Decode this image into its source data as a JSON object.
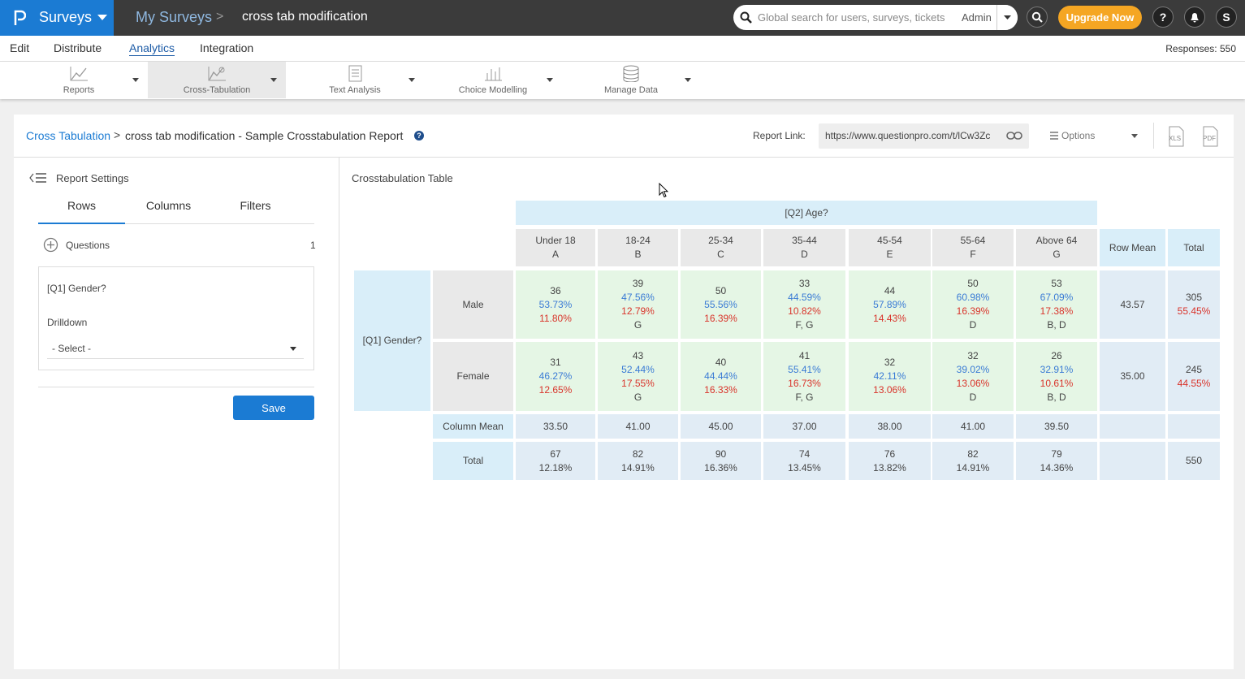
{
  "top_bar": {
    "app": "Surveys",
    "breadcrumb": "My Surveys",
    "survey": "cross tab modification",
    "search_placeholder": "Global search for users, surveys, tickets",
    "account": "Admin",
    "upgrade": "Upgrade Now",
    "help": "?",
    "user_initial": "S"
  },
  "nav": {
    "items": [
      "Edit",
      "Distribute",
      "Analytics",
      "Integration"
    ],
    "active": 2,
    "responses": "Responses: 550"
  },
  "toolbar": {
    "items": [
      "Reports",
      "Cross-Tabulation",
      "Text Analysis",
      "Choice Modelling",
      "Manage Data"
    ],
    "active": 1
  },
  "report": {
    "breadcrumb_root": "Cross Tabulation",
    "title": "cross tab modification - Sample Crosstabulation Report",
    "link_label": "Report Link:",
    "link": "https://www.questionpro.com/t/lCw3Zc",
    "options": "Options",
    "export": [
      "XLS",
      "PDF"
    ]
  },
  "settings": {
    "title": "Report Settings",
    "tabs": [
      "Rows",
      "Columns",
      "Filters"
    ],
    "active_tab": 0,
    "questions_label": "Questions",
    "questions_count": "1",
    "question": "[Q1] Gender?",
    "drilldown_label": "Drilldown",
    "drilldown_value": "- Select -",
    "save": "Save"
  },
  "table": {
    "title": "Crosstabulation Table",
    "column_question": "[Q2] Age?",
    "row_question": "[Q1] Gender?",
    "columns": [
      {
        "label": "Under 18",
        "letter": "A"
      },
      {
        "label": "18-24",
        "letter": "B"
      },
      {
        "label": "25-34",
        "letter": "C"
      },
      {
        "label": "35-44",
        "letter": "D"
      },
      {
        "label": "45-54",
        "letter": "E"
      },
      {
        "label": "55-64",
        "letter": "F"
      },
      {
        "label": "Above 64",
        "letter": "G"
      }
    ],
    "row_mean_header": "Row Mean",
    "total_header": "Total",
    "rows": [
      {
        "label": "Male",
        "cells": [
          {
            "count": "36",
            "col_pct": "53.73%",
            "row_pct": "11.80%"
          },
          {
            "count": "39",
            "col_pct": "47.56%",
            "row_pct": "12.79%",
            "sig": "G"
          },
          {
            "count": "50",
            "col_pct": "55.56%",
            "row_pct": "16.39%"
          },
          {
            "count": "33",
            "col_pct": "44.59%",
            "row_pct": "10.82%",
            "sig": "F, G"
          },
          {
            "count": "44",
            "col_pct": "57.89%",
            "row_pct": "14.43%"
          },
          {
            "count": "50",
            "col_pct": "60.98%",
            "row_pct": "16.39%",
            "sig": "D"
          },
          {
            "count": "53",
            "col_pct": "67.09%",
            "row_pct": "17.38%",
            "sig": "B, D"
          }
        ],
        "row_mean": "43.57",
        "total": "305",
        "total_pct": "55.45%"
      },
      {
        "label": "Female",
        "cells": [
          {
            "count": "31",
            "col_pct": "46.27%",
            "row_pct": "12.65%"
          },
          {
            "count": "43",
            "col_pct": "52.44%",
            "row_pct": "17.55%",
            "sig": "G"
          },
          {
            "count": "40",
            "col_pct": "44.44%",
            "row_pct": "16.33%"
          },
          {
            "count": "41",
            "col_pct": "55.41%",
            "row_pct": "16.73%",
            "sig": "F, G"
          },
          {
            "count": "32",
            "col_pct": "42.11%",
            "row_pct": "13.06%"
          },
          {
            "count": "32",
            "col_pct": "39.02%",
            "row_pct": "13.06%",
            "sig": "D"
          },
          {
            "count": "26",
            "col_pct": "32.91%",
            "row_pct": "10.61%",
            "sig": "B, D"
          }
        ],
        "row_mean": "35.00",
        "total": "245",
        "total_pct": "44.55%"
      }
    ],
    "column_mean": {
      "label": "Column Mean",
      "values": [
        "33.50",
        "41.00",
        "45.00",
        "37.00",
        "38.00",
        "41.00",
        "39.50"
      ]
    },
    "totals": {
      "label": "Total",
      "values": [
        {
          "count": "67",
          "pct": "12.18%"
        },
        {
          "count": "82",
          "pct": "14.91%"
        },
        {
          "count": "90",
          "pct": "16.36%"
        },
        {
          "count": "74",
          "pct": "13.45%"
        },
        {
          "count": "76",
          "pct": "13.82%"
        },
        {
          "count": "82",
          "pct": "14.91%"
        },
        {
          "count": "79",
          "pct": "14.36%"
        }
      ],
      "grand": "550"
    }
  }
}
